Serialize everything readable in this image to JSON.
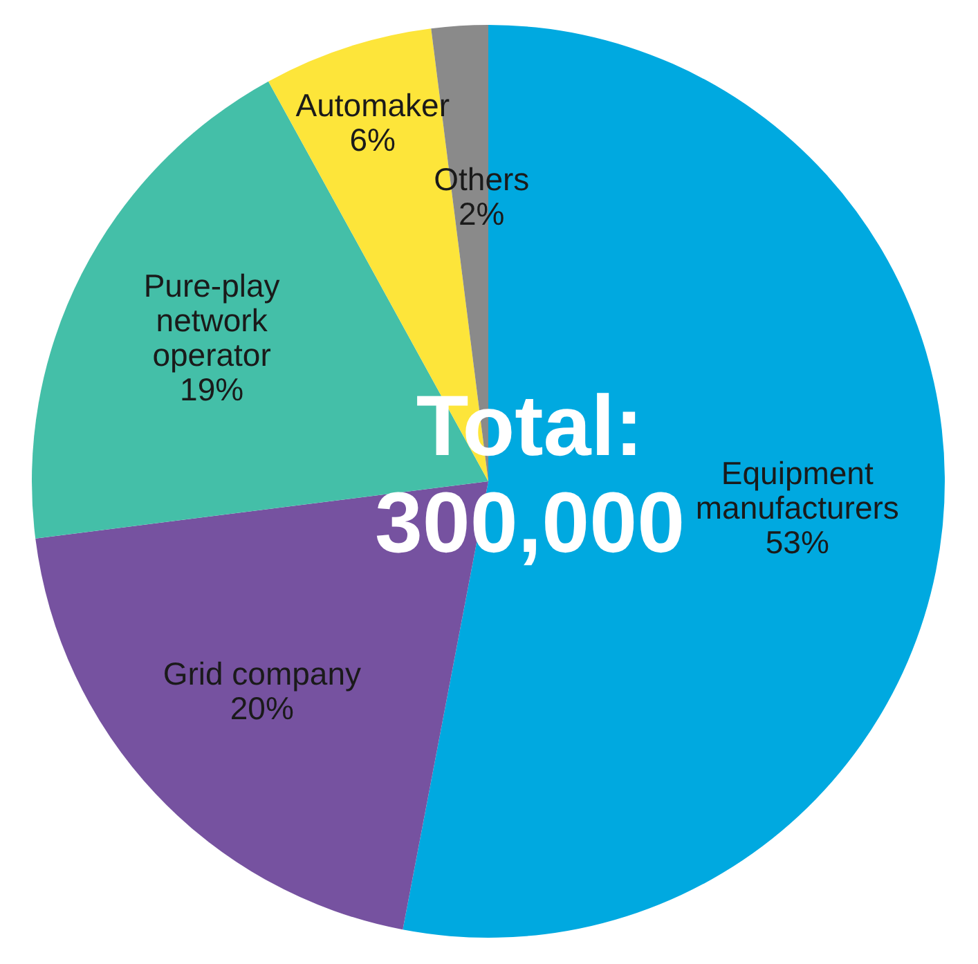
{
  "chart_data": {
    "type": "pie",
    "categories": [
      "Equipment manufacturers",
      "Grid company",
      "Pure-play network operator",
      "Automaker",
      "Others"
    ],
    "values": [
      53,
      20,
      19,
      6,
      2
    ],
    "value_labels": [
      "53%",
      "20%",
      "19%",
      "6%",
      "2%"
    ],
    "colors": [
      "#00a9e0",
      "#7652a0",
      "#44bfa8",
      "#fde53a",
      "#8a8a8a"
    ],
    "annotations": [
      "Total: 300,000"
    ]
  }
}
